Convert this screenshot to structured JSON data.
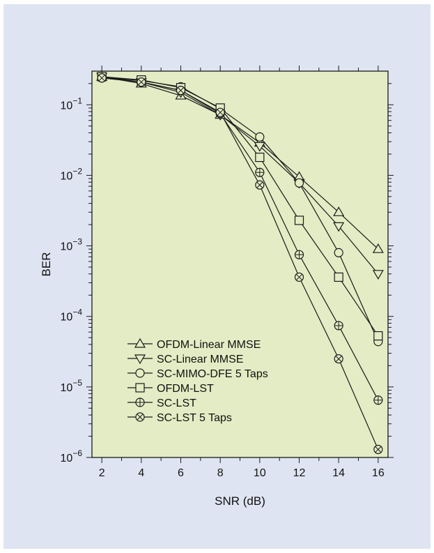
{
  "colors": {
    "figure_background": "#dfe4f2",
    "plot_background": "#e3ecc4",
    "line": "#1a1a1a"
  },
  "chart_data": {
    "type": "line",
    "title": "",
    "xlabel": "SNR (dB)",
    "ylabel": "BER",
    "xlim": [
      1.5,
      16.5
    ],
    "ylim": [
      1e-06,
      0.3
    ],
    "yscale": "log",
    "grid": false,
    "x_ticks": [
      2,
      4,
      6,
      8,
      10,
      12,
      14,
      16
    ],
    "x_tick_labels": [
      "2",
      "4",
      "6",
      "8",
      "10",
      "12",
      "14",
      "16"
    ],
    "y_ticks": [
      {
        "value": 0.1,
        "base": "10",
        "exp": "−1"
      },
      {
        "value": 0.01,
        "base": "10",
        "exp": "−2"
      },
      {
        "value": 0.001,
        "base": "10",
        "exp": "−3"
      },
      {
        "value": 0.0001,
        "base": "10",
        "exp": "−4"
      },
      {
        "value": 1e-05,
        "base": "10",
        "exp": "−5"
      },
      {
        "value": 1e-06,
        "base": "10",
        "exp": "−6"
      }
    ],
    "legend_position": "bottom-left",
    "x": [
      2,
      4,
      6,
      8,
      10,
      12,
      14,
      16
    ],
    "series": [
      {
        "name": "OFDM-Linear MMSE",
        "marker": "triangle-up",
        "values": [
          0.25,
          0.2,
          0.135,
          0.072,
          0.029,
          0.0095,
          0.003,
          0.0009
        ]
      },
      {
        "name": "SC-Linear MMSE",
        "marker": "triangle-down",
        "values": [
          0.25,
          0.21,
          0.15,
          0.072,
          0.026,
          0.0078,
          0.0019,
          0.0004
        ]
      },
      {
        "name": "SC-MIMO-DFE 5 Taps",
        "marker": "circle",
        "values": [
          0.25,
          0.22,
          0.18,
          0.088,
          0.035,
          0.0078,
          0.0008,
          4.4e-05
        ]
      },
      {
        "name": "OFDM-LST",
        "marker": "square",
        "values": [
          0.25,
          0.225,
          0.175,
          0.09,
          0.018,
          0.0023,
          0.00036,
          5.3e-05
        ]
      },
      {
        "name": "SC-LST",
        "marker": "circle-plus",
        "values": [
          0.24,
          0.21,
          0.16,
          0.075,
          0.011,
          0.00075,
          7.4e-05,
          6.5e-06
        ]
      },
      {
        "name": "SC-LST 5 Taps",
        "marker": "circle-x",
        "values": [
          0.24,
          0.21,
          0.16,
          0.078,
          0.0073,
          0.00036,
          2.5e-05,
          1.3e-06
        ]
      }
    ]
  }
}
